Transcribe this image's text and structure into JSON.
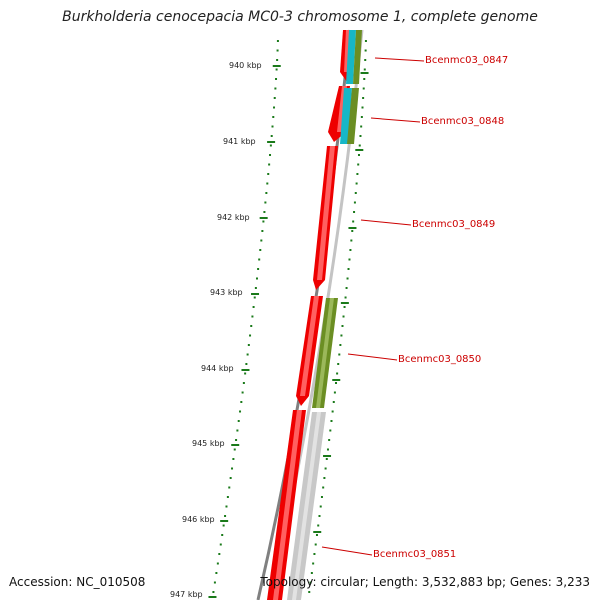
{
  "map": {
    "title": "Burkholderia cenocepacia MC0-3 chromosome 1, complete genome",
    "accession": "Accession: NC_010508",
    "stats": "Topology: circular; Length: 3,532,883 bp; Genes: 3,233",
    "ruler_labels": [
      "940 kbp",
      "941 kbp",
      "942 kbp",
      "943 kbp",
      "944 kbp",
      "945 kbp",
      "946 kbp",
      "947 kbp"
    ],
    "genes": [
      {
        "name": "Bcenmc03_0847"
      },
      {
        "name": "Bcenmc03_0848"
      },
      {
        "name": "Bcenmc03_0849"
      },
      {
        "name": "Bcenmc03_0850"
      },
      {
        "name": "Bcenmc03_0851"
      }
    ],
    "colors": {
      "backbone": "#808080",
      "gene_red": "#ee0000",
      "gene_red_light": "#ff5555",
      "cog_olive": "#6b8e23",
      "cog_olive_light": "#9bb85a",
      "cog_cyan": "#17b7c7",
      "cog_gray": "#c8c8c8",
      "ruler_green": "#1a7a1a",
      "label_red": "#cc0000"
    }
  }
}
